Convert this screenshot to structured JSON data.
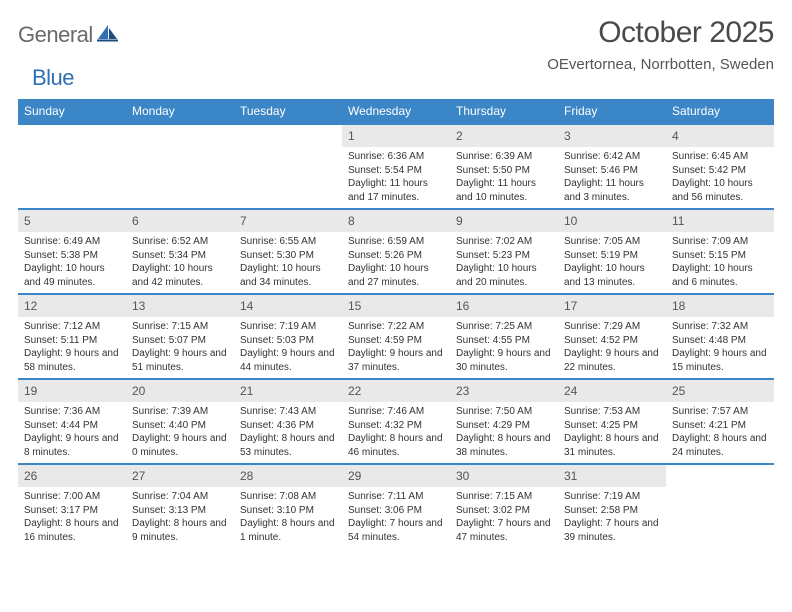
{
  "logo": {
    "text1": "General",
    "text2": "Blue"
  },
  "title": "October 2025",
  "location": "OEvertornea, Norrbotten, Sweden",
  "colors": {
    "header_bg": "#3b86c7",
    "header_text": "#ffffff",
    "week_border": "#3b86c7",
    "daynum_bg": "#e9e9e9",
    "text": "#333333",
    "logo_gray": "#6a6a6a",
    "logo_blue": "#2f6fb3",
    "background": "#ffffff"
  },
  "day_headers": [
    "Sunday",
    "Monday",
    "Tuesday",
    "Wednesday",
    "Thursday",
    "Friday",
    "Saturday"
  ],
  "weeks": [
    [
      {
        "blank": true
      },
      {
        "blank": true
      },
      {
        "blank": true
      },
      {
        "day": "1",
        "sunrise": "Sunrise: 6:36 AM",
        "sunset": "Sunset: 5:54 PM",
        "daylight": "Daylight: 11 hours and 17 minutes."
      },
      {
        "day": "2",
        "sunrise": "Sunrise: 6:39 AM",
        "sunset": "Sunset: 5:50 PM",
        "daylight": "Daylight: 11 hours and 10 minutes."
      },
      {
        "day": "3",
        "sunrise": "Sunrise: 6:42 AM",
        "sunset": "Sunset: 5:46 PM",
        "daylight": "Daylight: 11 hours and 3 minutes."
      },
      {
        "day": "4",
        "sunrise": "Sunrise: 6:45 AM",
        "sunset": "Sunset: 5:42 PM",
        "daylight": "Daylight: 10 hours and 56 minutes."
      }
    ],
    [
      {
        "day": "5",
        "sunrise": "Sunrise: 6:49 AM",
        "sunset": "Sunset: 5:38 PM",
        "daylight": "Daylight: 10 hours and 49 minutes."
      },
      {
        "day": "6",
        "sunrise": "Sunrise: 6:52 AM",
        "sunset": "Sunset: 5:34 PM",
        "daylight": "Daylight: 10 hours and 42 minutes."
      },
      {
        "day": "7",
        "sunrise": "Sunrise: 6:55 AM",
        "sunset": "Sunset: 5:30 PM",
        "daylight": "Daylight: 10 hours and 34 minutes."
      },
      {
        "day": "8",
        "sunrise": "Sunrise: 6:59 AM",
        "sunset": "Sunset: 5:26 PM",
        "daylight": "Daylight: 10 hours and 27 minutes."
      },
      {
        "day": "9",
        "sunrise": "Sunrise: 7:02 AM",
        "sunset": "Sunset: 5:23 PM",
        "daylight": "Daylight: 10 hours and 20 minutes."
      },
      {
        "day": "10",
        "sunrise": "Sunrise: 7:05 AM",
        "sunset": "Sunset: 5:19 PM",
        "daylight": "Daylight: 10 hours and 13 minutes."
      },
      {
        "day": "11",
        "sunrise": "Sunrise: 7:09 AM",
        "sunset": "Sunset: 5:15 PM",
        "daylight": "Daylight: 10 hours and 6 minutes."
      }
    ],
    [
      {
        "day": "12",
        "sunrise": "Sunrise: 7:12 AM",
        "sunset": "Sunset: 5:11 PM",
        "daylight": "Daylight: 9 hours and 58 minutes."
      },
      {
        "day": "13",
        "sunrise": "Sunrise: 7:15 AM",
        "sunset": "Sunset: 5:07 PM",
        "daylight": "Daylight: 9 hours and 51 minutes."
      },
      {
        "day": "14",
        "sunrise": "Sunrise: 7:19 AM",
        "sunset": "Sunset: 5:03 PM",
        "daylight": "Daylight: 9 hours and 44 minutes."
      },
      {
        "day": "15",
        "sunrise": "Sunrise: 7:22 AM",
        "sunset": "Sunset: 4:59 PM",
        "daylight": "Daylight: 9 hours and 37 minutes."
      },
      {
        "day": "16",
        "sunrise": "Sunrise: 7:25 AM",
        "sunset": "Sunset: 4:55 PM",
        "daylight": "Daylight: 9 hours and 30 minutes."
      },
      {
        "day": "17",
        "sunrise": "Sunrise: 7:29 AM",
        "sunset": "Sunset: 4:52 PM",
        "daylight": "Daylight: 9 hours and 22 minutes."
      },
      {
        "day": "18",
        "sunrise": "Sunrise: 7:32 AM",
        "sunset": "Sunset: 4:48 PM",
        "daylight": "Daylight: 9 hours and 15 minutes."
      }
    ],
    [
      {
        "day": "19",
        "sunrise": "Sunrise: 7:36 AM",
        "sunset": "Sunset: 4:44 PM",
        "daylight": "Daylight: 9 hours and 8 minutes."
      },
      {
        "day": "20",
        "sunrise": "Sunrise: 7:39 AM",
        "sunset": "Sunset: 4:40 PM",
        "daylight": "Daylight: 9 hours and 0 minutes."
      },
      {
        "day": "21",
        "sunrise": "Sunrise: 7:43 AM",
        "sunset": "Sunset: 4:36 PM",
        "daylight": "Daylight: 8 hours and 53 minutes."
      },
      {
        "day": "22",
        "sunrise": "Sunrise: 7:46 AM",
        "sunset": "Sunset: 4:32 PM",
        "daylight": "Daylight: 8 hours and 46 minutes."
      },
      {
        "day": "23",
        "sunrise": "Sunrise: 7:50 AM",
        "sunset": "Sunset: 4:29 PM",
        "daylight": "Daylight: 8 hours and 38 minutes."
      },
      {
        "day": "24",
        "sunrise": "Sunrise: 7:53 AM",
        "sunset": "Sunset: 4:25 PM",
        "daylight": "Daylight: 8 hours and 31 minutes."
      },
      {
        "day": "25",
        "sunrise": "Sunrise: 7:57 AM",
        "sunset": "Sunset: 4:21 PM",
        "daylight": "Daylight: 8 hours and 24 minutes."
      }
    ],
    [
      {
        "day": "26",
        "sunrise": "Sunrise: 7:00 AM",
        "sunset": "Sunset: 3:17 PM",
        "daylight": "Daylight: 8 hours and 16 minutes."
      },
      {
        "day": "27",
        "sunrise": "Sunrise: 7:04 AM",
        "sunset": "Sunset: 3:13 PM",
        "daylight": "Daylight: 8 hours and 9 minutes."
      },
      {
        "day": "28",
        "sunrise": "Sunrise: 7:08 AM",
        "sunset": "Sunset: 3:10 PM",
        "daylight": "Daylight: 8 hours and 1 minute."
      },
      {
        "day": "29",
        "sunrise": "Sunrise: 7:11 AM",
        "sunset": "Sunset: 3:06 PM",
        "daylight": "Daylight: 7 hours and 54 minutes."
      },
      {
        "day": "30",
        "sunrise": "Sunrise: 7:15 AM",
        "sunset": "Sunset: 3:02 PM",
        "daylight": "Daylight: 7 hours and 47 minutes."
      },
      {
        "day": "31",
        "sunrise": "Sunrise: 7:19 AM",
        "sunset": "Sunset: 2:58 PM",
        "daylight": "Daylight: 7 hours and 39 minutes."
      },
      {
        "blank": true
      }
    ]
  ]
}
